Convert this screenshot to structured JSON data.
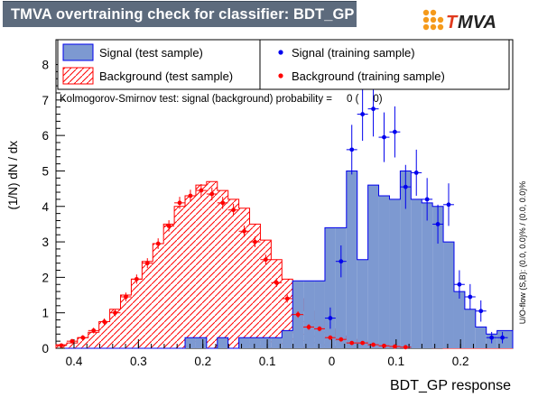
{
  "title": "TMVA overtraining check for classifier: BDT_GP",
  "logo": {
    "text": "MVA",
    "prefix": "T"
  },
  "chart_data": {
    "type": "histogram",
    "title": "TMVA overtraining check for classifier: BDT_GP",
    "xlabel": "BDT_GP response",
    "ylabel": "(1/N) dN / dx",
    "xlim": [
      -0.428,
      0.281
    ],
    "ylim": [
      0,
      8.7
    ],
    "xticks": [
      -0.4,
      -0.3,
      -0.2,
      -0.1,
      0,
      0.1,
      0.2
    ],
    "xtick_labels": [
      "0.4",
      "0.3",
      "0.2",
      "0.1",
      "0",
      "0.1",
      "0.2"
    ],
    "yticks": [
      0,
      1,
      2,
      3,
      4,
      5,
      6,
      7,
      8
    ],
    "ytick_labels": [
      "0",
      "1",
      "2",
      "3",
      "4",
      "5",
      "6",
      "7",
      "8"
    ],
    "bin_edges": [
      -0.428,
      -0.4113,
      -0.3946,
      -0.3779,
      -0.3612,
      -0.3445,
      -0.3278,
      -0.3111,
      -0.2944,
      -0.2777,
      -0.261,
      -0.2443,
      -0.2276,
      -0.2109,
      -0.1942,
      -0.1775,
      -0.1608,
      -0.1441,
      -0.1274,
      -0.1107,
      -0.094,
      -0.0773,
      -0.0606,
      -0.0439,
      -0.0272,
      -0.0105,
      0.0062,
      0.0229,
      0.0396,
      0.0563,
      0.073,
      0.0897,
      0.1064,
      0.1231,
      0.1398,
      0.1565,
      0.1732,
      0.1899,
      0.2066,
      0.2233,
      0.24,
      0.2567,
      0.281
    ],
    "series": [
      {
        "name": "Signal (test sample)",
        "style": "filled-histogram",
        "color": "#7d99d1",
        "edge_color": "#0000ee",
        "values": [
          0,
          0,
          0,
          0,
          0,
          0,
          0,
          0,
          0,
          0,
          0,
          0,
          0.3,
          0.3,
          0,
          0.3,
          0,
          0.3,
          0.3,
          0.3,
          0.3,
          0.5,
          1.9,
          1.9,
          1.9,
          3.4,
          3.4,
          5.0,
          2.5,
          4.6,
          4.3,
          4.2,
          5.0,
          4.2,
          4.1,
          4.0,
          3.0,
          1.6,
          1.1,
          0.6,
          0.4,
          0.5
        ]
      },
      {
        "name": "Background (test sample)",
        "style": "hatched-histogram",
        "color": "#ff0000",
        "values": [
          0.1,
          0.15,
          0.3,
          0.45,
          0.75,
          1.1,
          1.5,
          1.95,
          2.45,
          2.95,
          3.5,
          4.0,
          4.3,
          4.6,
          4.7,
          4.45,
          4.2,
          3.95,
          3.5,
          3.05,
          2.5,
          1.95,
          1.4,
          1.05,
          0.8,
          0.55,
          0.35,
          0.25,
          0.18,
          0.12,
          0.08,
          0.06,
          0.04,
          0.03,
          0.02,
          0.01,
          0,
          0,
          0,
          0,
          0,
          0
        ]
      },
      {
        "name": "Signal (training sample)",
        "style": "points",
        "color": "#0000ee",
        "x": [
          -0.0022,
          0.0145,
          0.0312,
          0.0479,
          0.0646,
          0.0813,
          0.098,
          0.1147,
          0.1314,
          0.1481,
          0.1648,
          0.1815,
          0.1982,
          0.2149,
          0.2316,
          0.2483,
          0.265
        ],
        "y": [
          0.85,
          2.45,
          5.6,
          6.6,
          6.75,
          5.95,
          6.1,
          4.55,
          4.95,
          4.2,
          3.5,
          4.05,
          1.8,
          1.45,
          1.05,
          0.3,
          0.3
        ],
        "yerr": [
          0.3,
          0.45,
          0.7,
          0.75,
          0.78,
          0.7,
          0.72,
          0.62,
          0.65,
          0.6,
          0.55,
          0.6,
          0.4,
          0.36,
          0.3,
          0.16,
          0.16
        ]
      },
      {
        "name": "Background (training sample)",
        "style": "points",
        "color": "#ff0000",
        "x": [
          -0.4197,
          -0.403,
          -0.3863,
          -0.3696,
          -0.3529,
          -0.3362,
          -0.3195,
          -0.3028,
          -0.2861,
          -0.2694,
          -0.2527,
          -0.236,
          -0.2193,
          -0.2026,
          -0.1859,
          -0.1692,
          -0.1525,
          -0.1358,
          -0.1191,
          -0.1024,
          -0.0857,
          -0.069,
          -0.0523,
          -0.0356,
          -0.0189,
          -0.0022,
          0.0145,
          0.0312,
          0.0479,
          0.0646,
          0.0813,
          0.098,
          0.1147
        ],
        "y": [
          0.08,
          0.2,
          0.3,
          0.5,
          0.75,
          1.0,
          1.45,
          1.95,
          2.4,
          2.95,
          3.45,
          4.1,
          4.3,
          4.45,
          4.35,
          4.1,
          3.9,
          3.3,
          3.0,
          2.5,
          1.85,
          1.4,
          0.95,
          0.6,
          0.55,
          0.3,
          0.25,
          0.15,
          0.15,
          0.1,
          0.07,
          0.05,
          0.03
        ],
        "yerr": [
          0.05,
          0.06,
          0.07,
          0.08,
          0.09,
          0.1,
          0.12,
          0.13,
          0.14,
          0.15,
          0.16,
          0.17,
          0.17,
          0.18,
          0.18,
          0.17,
          0.17,
          0.16,
          0.15,
          0.14,
          0.12,
          0.11,
          0.09,
          0.08,
          0.07,
          0.05,
          0.05,
          0.04,
          0.04,
          0.03,
          0.03,
          0.02,
          0.02
        ]
      }
    ],
    "legend_placement": "top",
    "legend_left": [
      {
        "label": "Signal (test sample)",
        "marker": "filled-box"
      },
      {
        "label": "Background (test sample)",
        "marker": "hatched-box"
      }
    ],
    "legend_right": [
      {
        "label": "Signal (training sample)",
        "marker": "dot"
      },
      {
        "label": "Background (training sample)",
        "marker": "dot"
      }
    ],
    "annotation": "Kolmogorov-Smirnov test: signal (background) probability =     0 (     0)",
    "side_note": "U/O-flow (S,B): (0.0, 0.0)% / (0.0, 0.0)%"
  }
}
